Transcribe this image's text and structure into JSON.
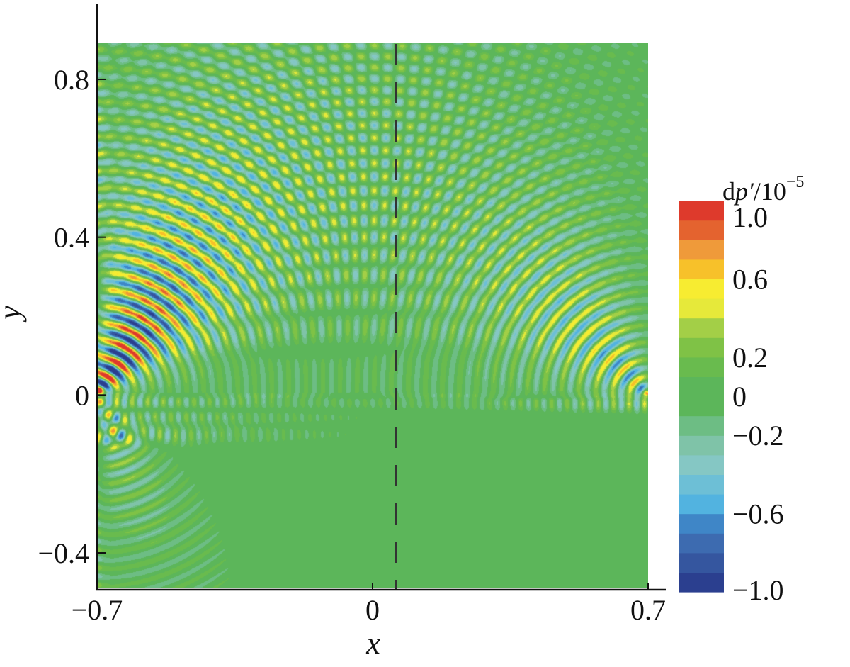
{
  "chart_data": {
    "type": "heatmap",
    "title": "",
    "xlabel": "x",
    "ylabel": "y",
    "xlim": [
      -0.7,
      0.7
    ],
    "ylim": [
      -0.48,
      0.9
    ],
    "x_ticks": [
      {
        "value": -0.7,
        "label": "−0.7"
      },
      {
        "value": 0,
        "label": "0"
      },
      {
        "value": 0.7,
        "label": "0.7"
      }
    ],
    "y_ticks": [
      {
        "value": 0.8,
        "label": "0.8"
      },
      {
        "value": 0.4,
        "label": "0.4"
      },
      {
        "value": 0,
        "label": "0"
      },
      {
        "value": -0.4,
        "label": "−0.4"
      }
    ],
    "field": {
      "description_source": "pressure perturbation wave pattern",
      "sources": [
        {
          "x": -0.7,
          "y": 0.0,
          "amplitude": 1.0,
          "side": "left"
        },
        {
          "x": 0.7,
          "y": 0.0,
          "amplitude": 0.55,
          "side": "right"
        }
      ]
    },
    "reference_line": {
      "x": 0.06,
      "style": "dashed",
      "color": "#333333"
    },
    "colorbar": {
      "title_parts": {
        "base": "d",
        "var": "p′",
        "slash": "/10",
        "exp": "−5"
      },
      "min": -1.0,
      "max": 1.0,
      "levels": 20,
      "tick_labels": [
        {
          "value": 1.0,
          "label": "1.0"
        },
        {
          "value": 0.6,
          "label": "0.6"
        },
        {
          "value": 0.2,
          "label": "0.2"
        },
        {
          "value": 0.0,
          "label": "0"
        },
        {
          "value": -0.2,
          "label": "−0.2"
        },
        {
          "value": -0.6,
          "label": "−0.6"
        },
        {
          "value": -1.0,
          "label": "−1.0"
        }
      ],
      "colors": [
        "#2b3f8f",
        "#35569f",
        "#3d6bb0",
        "#3f86c7",
        "#52b3e0",
        "#6dbfd6",
        "#85c7c4",
        "#7fc3a8",
        "#6dbd84",
        "#5cb65a",
        "#5cb65a",
        "#69bb4e",
        "#7fc246",
        "#a3cf47",
        "#e6e93a",
        "#f7ec31",
        "#f7c12a",
        "#ef9a3a",
        "#e4632f",
        "#de3a2c"
      ]
    }
  }
}
